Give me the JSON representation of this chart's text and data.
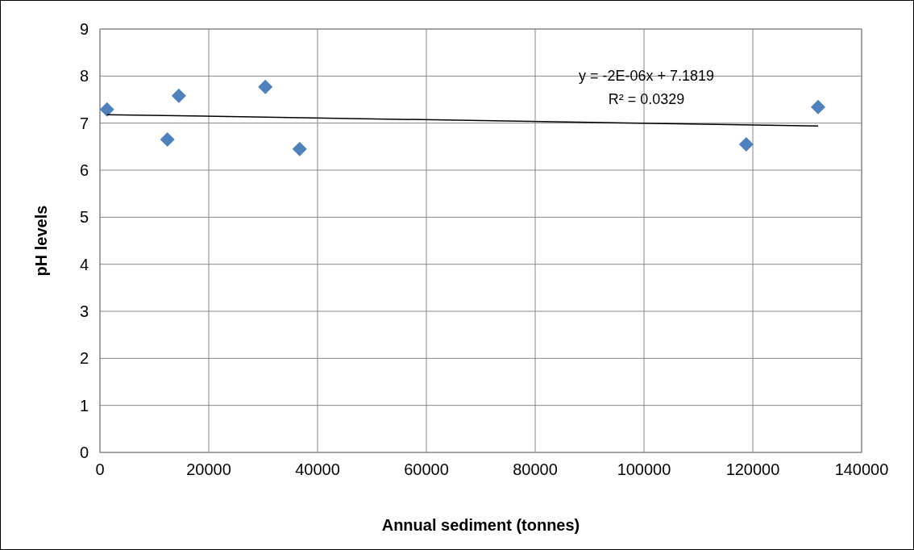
{
  "chart_data": {
    "type": "scatter",
    "xlabel": "Annual sediment (tonnes)",
    "ylabel": "pH levels",
    "marker": "diamond",
    "grid": true,
    "xlim": [
      0,
      140000
    ],
    "xticks": [
      0,
      20000,
      40000,
      60000,
      80000,
      100000,
      120000,
      140000
    ],
    "ylim": [
      0,
      9
    ],
    "yticks": [
      0,
      1,
      2,
      3,
      4,
      5,
      6,
      7,
      8,
      9
    ],
    "annotations": [
      "y = -2E-06x + 7.1819",
      "R² = 0.0329"
    ],
    "series": [
      {
        "color": "#4f81bd",
        "x": [
          1300,
          12400,
          14500,
          30400,
          36700,
          118800,
          132000
        ],
        "values": [
          7.29,
          6.65,
          7.58,
          7.77,
          6.45,
          6.55,
          7.34
        ]
      },
      {
        "type": "line",
        "color": "#000000",
        "x": [
          1300,
          132000
        ],
        "values": [
          7.18,
          6.94
        ],
        "marker": "none"
      }
    ]
  }
}
